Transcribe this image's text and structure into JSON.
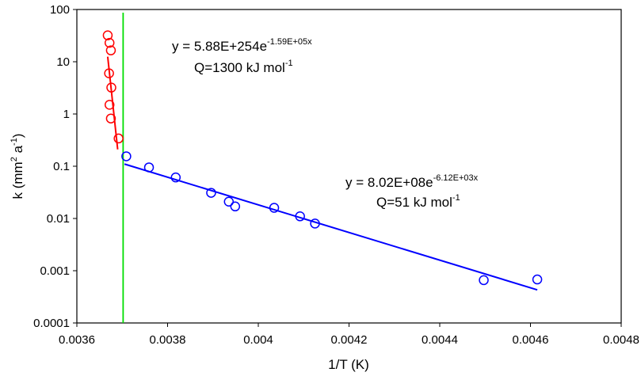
{
  "chart_data": {
    "type": "scatter",
    "xlabel": "1/T (K)",
    "ylabel": "k (mm² a⁻¹)",
    "ylabel_parts": {
      "main": "k (mm",
      "sup1": "2",
      "mid": " a",
      "sup2": "-1",
      "end": ")"
    },
    "xlim": [
      0.0036,
      0.0048
    ],
    "ylim": [
      0.0001,
      100
    ],
    "yscale": "log",
    "x_ticks": [
      "0.0036",
      "0.0038",
      "0.004",
      "0.0042",
      "0.0044",
      "0.0046",
      "0.0048"
    ],
    "y_ticks": [
      "0.0001",
      "0.001",
      "0.01",
      "0.1",
      "1",
      "10",
      "100"
    ],
    "grid": false,
    "series": [
      {
        "color": "#ff0000",
        "marker": "circle-open",
        "points": [
          [
            0.003668,
            32
          ],
          [
            0.003672,
            23
          ],
          [
            0.003675,
            16.5
          ],
          [
            0.003671,
            6.0
          ],
          [
            0.003676,
            3.2
          ],
          [
            0.003672,
            1.5
          ],
          [
            0.003675,
            0.82
          ],
          [
            0.003692,
            0.34
          ]
        ],
        "fit": {
          "x": [
            0.003668,
            0.00369
          ],
          "y": [
            12.5,
            0.21
          ]
        },
        "equation": {
          "base": "y = 5.88E+254e",
          "exp": "-1.59E+05x"
        },
        "energy": {
          "base": "Q=1300 kJ mol",
          "exp": "-1"
        }
      },
      {
        "color": "#0000ff",
        "marker": "circle-open",
        "points": [
          [
            0.003709,
            0.155
          ],
          [
            0.003759,
            0.095
          ],
          [
            0.003818,
            0.061
          ],
          [
            0.003896,
            0.031
          ],
          [
            0.003935,
            0.021
          ],
          [
            0.003949,
            0.017
          ],
          [
            0.004035,
            0.016
          ],
          [
            0.004092,
            0.011
          ],
          [
            0.004125,
            0.008
          ],
          [
            0.004497,
            0.00066
          ],
          [
            0.004615,
            0.00068
          ]
        ],
        "fit": {
          "x": [
            0.003705,
            0.004615
          ],
          "y": [
            0.11,
            0.00043
          ]
        },
        "equation": {
          "base": "y = 8.02E+08e",
          "exp": "-6.12E+03x"
        },
        "energy": {
          "base": "Q=51 kJ mol",
          "exp": "-1"
        }
      }
    ],
    "vertical_line": {
      "x": 0.003702,
      "color": "#00dd00"
    }
  }
}
